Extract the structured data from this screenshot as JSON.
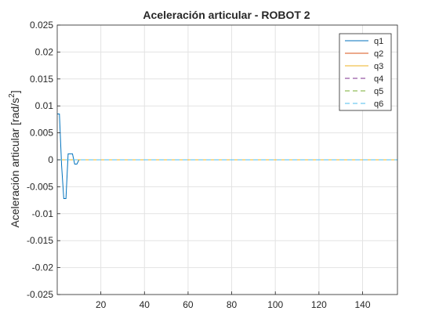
{
  "chart_data": {
    "type": "line",
    "title": "Aceleración articular - ROBOT 2",
    "ylabel": "Aceleración articular [rad/s",
    "ylabel_superscript": "2",
    "ylabel_close": "]",
    "xlabel": "",
    "xlim": [
      0,
      156
    ],
    "ylim": [
      -0.025,
      0.025
    ],
    "grid": true,
    "legend_position": "top-right",
    "x_ticks": [
      20,
      40,
      60,
      80,
      100,
      120,
      140
    ],
    "y_ticks": [
      -0.025,
      -0.02,
      -0.015,
      -0.01,
      -0.005,
      0,
      0.005,
      0.01,
      0.015,
      0.02,
      0.025
    ],
    "x_tick_labels": [
      "20",
      "40",
      "60",
      "80",
      "100",
      "120",
      "140"
    ],
    "y_tick_labels": [
      "-0.025",
      "-0.02",
      "-0.015",
      "-0.01",
      "-0.005",
      "0",
      "0.005",
      "0.01",
      "0.015",
      "0.02",
      "0.025"
    ],
    "series": [
      {
        "name": "q1",
        "color": "#0072BD",
        "dash": "solid",
        "x": [
          0,
          1,
          2,
          3,
          4,
          5,
          7,
          8,
          9,
          10,
          11,
          12,
          13,
          17,
          18,
          19,
          20,
          21,
          22,
          23,
          27,
          28,
          29,
          30,
          31,
          32,
          33,
          35,
          36,
          37,
          38,
          39,
          40,
          41,
          42,
          43,
          44,
          45,
          50,
          51,
          52,
          58,
          59,
          60,
          61,
          62,
          63,
          64,
          65,
          66,
          67,
          68,
          69,
          70,
          72,
          73,
          74,
          75,
          76,
          77,
          78,
          79,
          80,
          81,
          82,
          83,
          84,
          85,
          86,
          87,
          88,
          89,
          90,
          91,
          92,
          93,
          94,
          95,
          96,
          97,
          98,
          99,
          100,
          101,
          102,
          103,
          104,
          105,
          106,
          107,
          108,
          109,
          110,
          112,
          113,
          114,
          115,
          116,
          117,
          118,
          119,
          120,
          121,
          122,
          124,
          125,
          126,
          127,
          128,
          129,
          130,
          131,
          132,
          133,
          134,
          135,
          136,
          137,
          138,
          139,
          140,
          141,
          142,
          143,
          144,
          145,
          146,
          147,
          148,
          149,
          150,
          151,
          152,
          153,
          154,
          155,
          156
        ],
        "y": [
          0.0085,
          0.0085,
          -0.001,
          -0.0072,
          -0.0072,
          0.0011,
          0.0011,
          -0.0008,
          -0.0008,
          0,
          0,
          0,
          0,
          0,
          0,
          0,
          0,
          0,
          0,
          0,
          0,
          0,
          0,
          0,
          0,
          0,
          0,
          0,
          0,
          0,
          0,
          0,
          0,
          0,
          0,
          0,
          0,
          0,
          0,
          0,
          0,
          0,
          0,
          0,
          0,
          0,
          0,
          0,
          0,
          0,
          0,
          0,
          0,
          0,
          0,
          0,
          0,
          0,
          0,
          0,
          0,
          0,
          0,
          0,
          0,
          0,
          0,
          0,
          0,
          0,
          0,
          0,
          0,
          0,
          0,
          0,
          0,
          0,
          0,
          0,
          0,
          0,
          0,
          0,
          0,
          0,
          0,
          0,
          0,
          0,
          0,
          0,
          0,
          0,
          0,
          0,
          0,
          0,
          0,
          0,
          0,
          0,
          0,
          0,
          0,
          0,
          0,
          0,
          0,
          0,
          0,
          0,
          0,
          0,
          0,
          0,
          0,
          0,
          0,
          0,
          0,
          0,
          0,
          0,
          0,
          0,
          0,
          0,
          0,
          0,
          0,
          0,
          0,
          0,
          0,
          0,
          0
        ]
      },
      {
        "name": "q2",
        "color": "#D95319",
        "dash": "solid",
        "x": [
          0,
          156
        ],
        "y": [
          0,
          0
        ]
      },
      {
        "name": "q3",
        "color": "#EDB120",
        "dash": "solid",
        "x": [
          0,
          156
        ],
        "y": [
          0,
          0
        ]
      },
      {
        "name": "q4",
        "color": "#7E2F8E",
        "dash": "dashed",
        "x": [
          0,
          156
        ],
        "y": [
          0,
          0
        ]
      },
      {
        "name": "q5",
        "color": "#77AC30",
        "dash": "dashed",
        "x": [
          0,
          156
        ],
        "y": [
          0,
          0
        ]
      },
      {
        "name": "q6",
        "color": "#4DBEEE",
        "dash": "dashed",
        "x": [
          0,
          156
        ],
        "y": [
          0,
          0
        ]
      }
    ]
  }
}
